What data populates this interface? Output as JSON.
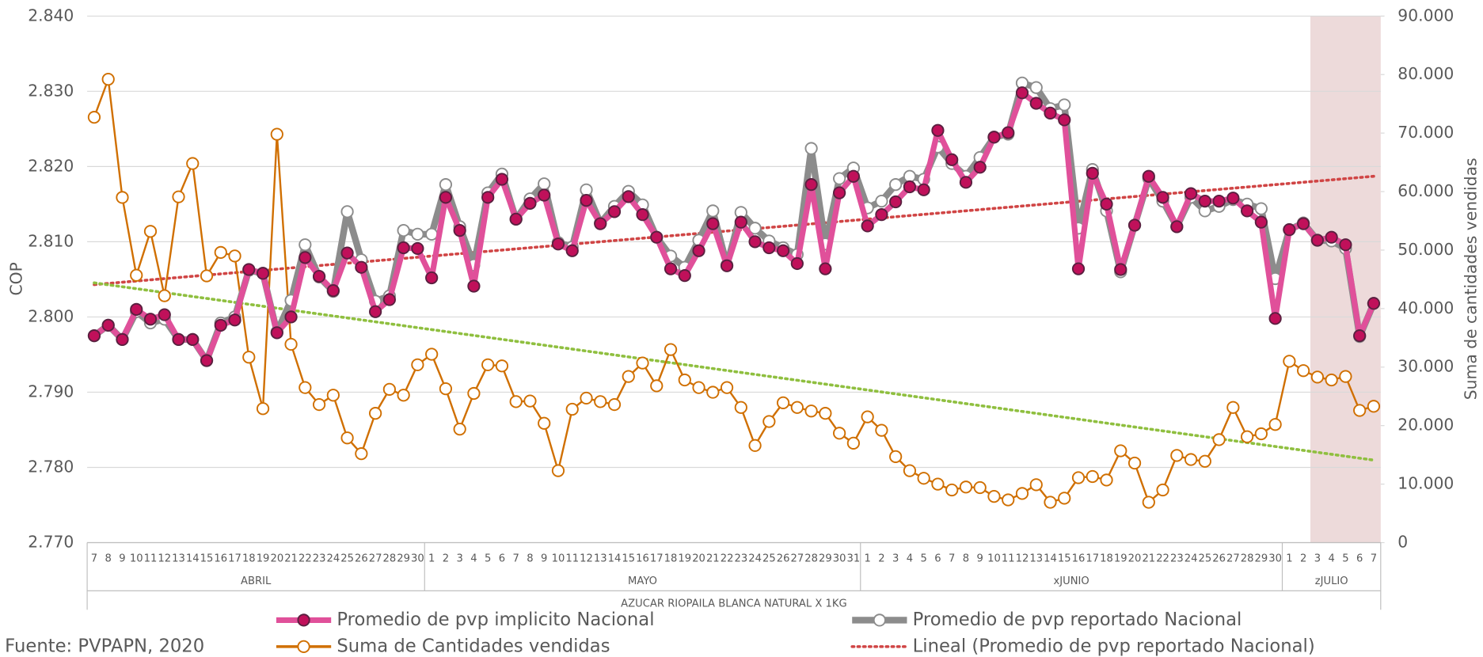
{
  "chart_data": {
    "type": "line",
    "x_title": "AZUCAR RIOPAILA BLANCA NATURAL X 1KG",
    "y_title": "COP",
    "y2_title": "Suma de cantidades vendidas",
    "source": "Fuente: PVPAPN, 2020",
    "groups": [
      {
        "label": "ABRIL",
        "categories": [
          "7",
          "8",
          "9",
          "10",
          "11",
          "12",
          "13",
          "14",
          "15",
          "16",
          "17",
          "18",
          "19",
          "20",
          "21",
          "22",
          "23",
          "24",
          "25",
          "26",
          "27",
          "28",
          "29",
          "30"
        ]
      },
      {
        "label": "MAYO",
        "categories": [
          "1",
          "2",
          "3",
          "4",
          "5",
          "6",
          "7",
          "8",
          "9",
          "10",
          "11",
          "12",
          "13",
          "14",
          "15",
          "16",
          "17",
          "18",
          "19",
          "20",
          "21",
          "22",
          "23",
          "24",
          "25",
          "26",
          "27",
          "28",
          "29",
          "30",
          "31"
        ]
      },
      {
        "label": "xJUNIO",
        "categories": [
          "1",
          "2",
          "3",
          "4",
          "5",
          "6",
          "7",
          "8",
          "9",
          "10",
          "11",
          "12",
          "13",
          "14",
          "15",
          "16",
          "17",
          "18",
          "19",
          "20",
          "21",
          "22",
          "23",
          "24",
          "25",
          "26",
          "27",
          "28",
          "29",
          "30"
        ]
      },
      {
        "label": "zJULIO",
        "categories": [
          "1",
          "2",
          "3",
          "4",
          "5",
          "6",
          "7"
        ]
      }
    ],
    "ylim": [
      2.77,
      2.84
    ],
    "yticks": [
      {
        "value": 2.77,
        "label": "2.770"
      },
      {
        "value": 2.78,
        "label": "2.780"
      },
      {
        "value": 2.79,
        "label": "2.790"
      },
      {
        "value": 2.8,
        "label": "2.800"
      },
      {
        "value": 2.81,
        "label": "2.810"
      },
      {
        "value": 2.82,
        "label": "2.820"
      },
      {
        "value": 2.83,
        "label": "2.830"
      },
      {
        "value": 2.84,
        "label": "2.840"
      }
    ],
    "y2lim": [
      0,
      90000
    ],
    "y2ticks": [
      0,
      {
        "value": 10000,
        "label": "10.000"
      },
      {
        "value": 20000,
        "label": "20.000"
      },
      {
        "value": 30000,
        "label": "30.000"
      },
      {
        "value": 40000,
        "label": "40.000"
      },
      {
        "value": 50000,
        "label": "50.000"
      },
      {
        "value": 60000,
        "label": "60.000"
      },
      {
        "value": 70000,
        "label": "70.000"
      },
      {
        "value": 80000,
        "label": "80.000"
      },
      {
        "value": 90000,
        "label": "90.000"
      }
    ],
    "grid": true,
    "series": [
      {
        "name": "Promedio de pvp implicito Nacional",
        "color": "#e0509a",
        "marker_color": "#c0105a",
        "axis": "y",
        "values": [
          2.7975,
          2.7989,
          2.797,
          2.801,
          2.7997,
          2.8003,
          2.797,
          2.797,
          2.7942,
          2.7989,
          2.7996,
          2.8063,
          2.8058,
          2.7979,
          2.8,
          2.8079,
          2.8054,
          2.8035,
          2.8085,
          2.8066,
          2.8007,
          2.8023,
          2.8092,
          2.8091,
          2.8052,
          2.8159,
          2.8115,
          2.8041,
          2.8159,
          2.8183,
          2.813,
          2.8151,
          2.8162,
          2.8097,
          2.8088,
          2.8155,
          2.8124,
          2.814,
          2.816,
          2.8136,
          2.8106,
          2.8064,
          2.8055,
          2.8088,
          2.8124,
          2.8068,
          2.8126,
          2.81,
          2.8092,
          2.8088,
          2.8071,
          2.8176,
          2.8064,
          2.8165,
          2.8187,
          2.8121,
          2.8136,
          2.8153,
          2.8173,
          2.8169,
          2.8248,
          2.8209,
          2.8179,
          2.8199,
          2.8239,
          2.8245,
          2.8298,
          2.8284,
          2.8271,
          2.8262,
          2.8064,
          2.8191,
          2.815,
          2.8063,
          2.8122,
          2.8187,
          2.8159,
          2.812,
          2.8164,
          2.8154,
          2.8154,
          2.8158,
          2.8141,
          2.8126,
          2.7998,
          2.8116,
          2.8124,
          2.8102,
          2.8106,
          2.8096,
          2.7975,
          2.8018
        ]
      },
      {
        "name": "Promedio de pvp reportado Nacional",
        "color": "#8c8c8c",
        "marker_color": "#8c8c8c",
        "axis": "y",
        "values": [
          2.7975,
          2.7989,
          2.797,
          2.8007,
          2.7992,
          2.7997,
          2.797,
          2.797,
          2.7942,
          2.7992,
          2.8,
          2.8062,
          2.8058,
          2.798,
          2.8022,
          2.8096,
          2.8053,
          2.8034,
          2.814,
          2.8076,
          2.8021,
          2.8028,
          2.8115,
          2.811,
          2.811,
          2.8176,
          2.812,
          2.8069,
          2.8165,
          2.819,
          2.813,
          2.8157,
          2.8177,
          2.8099,
          2.8093,
          2.8169,
          2.8125,
          2.8147,
          2.8167,
          2.8149,
          2.8106,
          2.8081,
          2.8066,
          2.8102,
          2.8141,
          2.8069,
          2.8139,
          2.8118,
          2.8101,
          2.8092,
          2.8083,
          2.8224,
          2.8097,
          2.8184,
          2.8198,
          2.8145,
          2.8154,
          2.8176,
          2.8187,
          2.8183,
          2.8226,
          2.8204,
          2.8187,
          2.8212,
          2.8239,
          2.8243,
          2.8311,
          2.8305,
          2.8277,
          2.8282,
          2.8118,
          2.8196,
          2.8141,
          2.806,
          2.8122,
          2.8184,
          2.8154,
          2.812,
          2.8159,
          2.8141,
          2.8147,
          2.8156,
          2.815,
          2.8144,
          2.8051,
          2.8116,
          2.8125,
          2.8102,
          2.8101,
          2.8091,
          2.7974,
          2.8018
        ]
      },
      {
        "name": "Suma de Cantidades vendidas",
        "color": "#d06f00",
        "marker_color": "#d06f00",
        "axis": "y2",
        "values": [
          72700,
          79200,
          59000,
          45700,
          53200,
          42200,
          59100,
          64800,
          45600,
          49600,
          49000,
          31700,
          22900,
          69800,
          33900,
          26500,
          23600,
          25200,
          17900,
          15200,
          22100,
          26200,
          25200,
          30400,
          32200,
          26300,
          19400,
          25500,
          30400,
          30200,
          24100,
          24200,
          20400,
          12300,
          22800,
          24700,
          24100,
          23600,
          28400,
          30700,
          26800,
          33000,
          27800,
          26500,
          25700,
          26500,
          23100,
          16600,
          20700,
          23900,
          23100,
          22500,
          22100,
          18700,
          17000,
          21500,
          19200,
          14700,
          12300,
          11000,
          10000,
          9000,
          9500,
          9400,
          7900,
          7300,
          8400,
          9900,
          6900,
          7600,
          11100,
          11300,
          10700,
          15700,
          13600,
          6900,
          9000,
          14900,
          14200,
          13900,
          17600,
          23100,
          18100,
          18600,
          20200,
          31000,
          29400,
          28300,
          27800,
          28400,
          22600,
          23300
        ]
      }
    ],
    "trendlines": [
      {
        "name": "Lineal (Promedio de pvp reportado Nacional)",
        "color": "#d04545",
        "axis": "y",
        "values": [
          2.8043,
          2.8187
        ]
      },
      {
        "color": "#8fbf3f",
        "axis": "y2",
        "values": [
          44400,
          14100
        ]
      }
    ]
  }
}
